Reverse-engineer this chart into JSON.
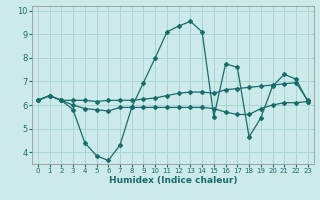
{
  "title": "",
  "xlabel": "Humidex (Indice chaleur)",
  "ylabel": "",
  "background_color": "#cceaea",
  "grid_color": "#aad4d4",
  "line_color": "#1a6b6b",
  "xlim": [
    -0.5,
    23.5
  ],
  "ylim": [
    3.5,
    10.2
  ],
  "xticks": [
    0,
    1,
    2,
    3,
    4,
    5,
    6,
    7,
    8,
    9,
    10,
    11,
    12,
    13,
    14,
    15,
    16,
    17,
    18,
    19,
    20,
    21,
    22,
    23
  ],
  "yticks": [
    4,
    5,
    6,
    7,
    8,
    9,
    10
  ],
  "line1_x": [
    0,
    1,
    2,
    3,
    4,
    5,
    6,
    7,
    8,
    9,
    10,
    11,
    12,
    13,
    14,
    15,
    16,
    17,
    18,
    19,
    20,
    21,
    22,
    23
  ],
  "line1_y": [
    6.2,
    6.4,
    6.2,
    5.8,
    4.4,
    3.85,
    3.65,
    4.3,
    5.9,
    6.95,
    8.0,
    9.1,
    9.35,
    9.55,
    9.1,
    5.5,
    7.75,
    7.6,
    4.65,
    5.45,
    6.8,
    7.3,
    7.1,
    6.15
  ],
  "line2_x": [
    0,
    1,
    2,
    3,
    4,
    5,
    6,
    7,
    8,
    9,
    10,
    11,
    12,
    13,
    14,
    15,
    16,
    17,
    18,
    19,
    20,
    21,
    22,
    23
  ],
  "line2_y": [
    6.2,
    6.4,
    6.2,
    6.2,
    6.2,
    6.15,
    6.2,
    6.2,
    6.2,
    6.25,
    6.3,
    6.4,
    6.5,
    6.55,
    6.55,
    6.5,
    6.65,
    6.7,
    6.75,
    6.8,
    6.85,
    6.9,
    6.95,
    6.2
  ],
  "line3_x": [
    0,
    1,
    2,
    3,
    4,
    5,
    6,
    7,
    8,
    9,
    10,
    11,
    12,
    13,
    14,
    15,
    16,
    17,
    18,
    19,
    20,
    21,
    22,
    23
  ],
  "line3_y": [
    6.2,
    6.4,
    6.2,
    6.0,
    5.85,
    5.8,
    5.75,
    5.9,
    5.9,
    5.9,
    5.9,
    5.9,
    5.9,
    5.9,
    5.9,
    5.85,
    5.7,
    5.6,
    5.6,
    5.85,
    6.0,
    6.1,
    6.1,
    6.15
  ]
}
